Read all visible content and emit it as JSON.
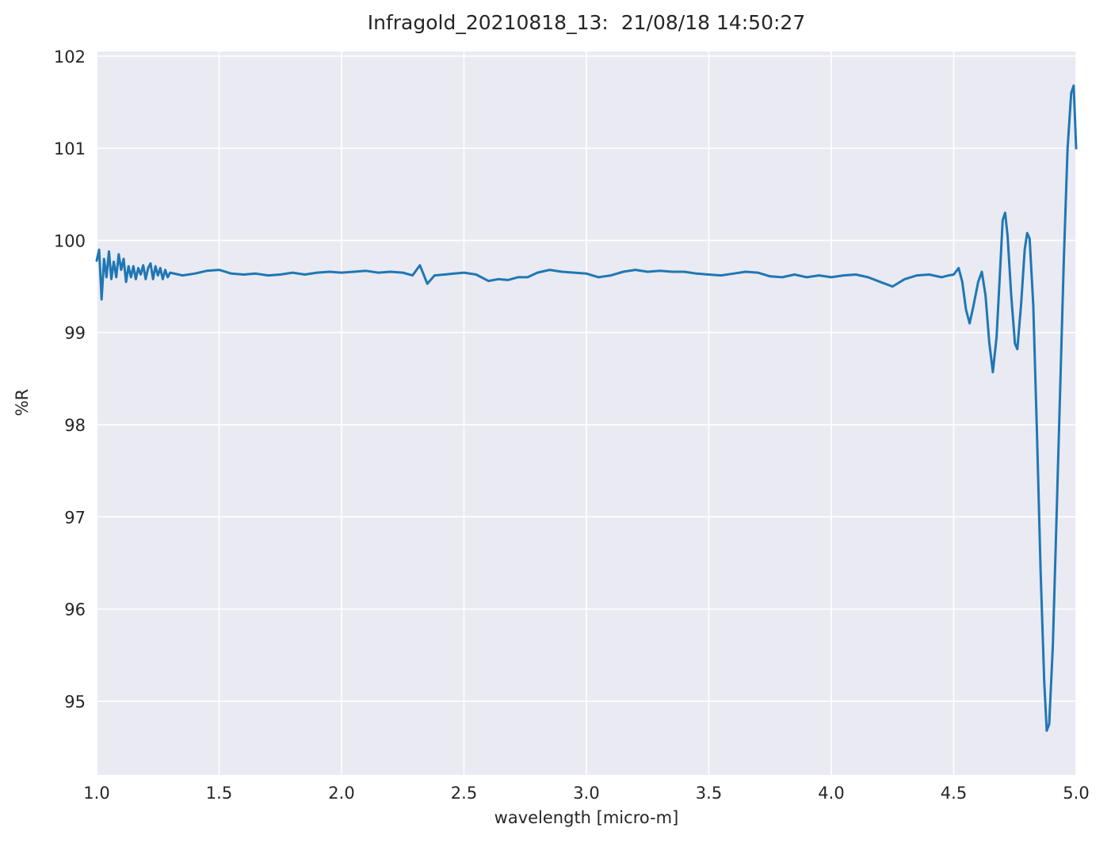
{
  "chart_data": {
    "type": "line",
    "title": "Infragold_20210818_13:  21/08/18 14:50:27",
    "xlabel": "wavelength [micro-m]",
    "ylabel": "%R",
    "xlim": [
      1.0,
      5.0
    ],
    "ylim": [
      94.2,
      102.05
    ],
    "xticks": [
      1.0,
      1.5,
      2.0,
      2.5,
      3.0,
      3.5,
      4.0,
      4.5,
      5.0
    ],
    "xtick_labels": [
      "1.0",
      "1.5",
      "2.0",
      "2.5",
      "3.0",
      "3.5",
      "4.0",
      "4.5",
      "5.0"
    ],
    "yticks": [
      95,
      96,
      97,
      98,
      99,
      100,
      101,
      102
    ],
    "ytick_labels": [
      "95",
      "96",
      "97",
      "98",
      "99",
      "100",
      "101",
      "102"
    ],
    "grid": true,
    "legend": "none",
    "line_color": "#1f77b4",
    "plot_bg": "#eaeaf2",
    "grid_color": "#ffffff",
    "series": [
      {
        "name": "Infragold_20210818_13",
        "points": [
          [
            1.0,
            99.78
          ],
          [
            1.01,
            99.9
          ],
          [
            1.02,
            99.36
          ],
          [
            1.03,
            99.8
          ],
          [
            1.04,
            99.6
          ],
          [
            1.05,
            99.88
          ],
          [
            1.06,
            99.58
          ],
          [
            1.07,
            99.77
          ],
          [
            1.08,
            99.6
          ],
          [
            1.09,
            99.85
          ],
          [
            1.1,
            99.68
          ],
          [
            1.11,
            99.8
          ],
          [
            1.12,
            99.55
          ],
          [
            1.13,
            99.72
          ],
          [
            1.14,
            99.6
          ],
          [
            1.15,
            99.72
          ],
          [
            1.16,
            99.58
          ],
          [
            1.17,
            99.7
          ],
          [
            1.18,
            99.63
          ],
          [
            1.19,
            99.73
          ],
          [
            1.2,
            99.58
          ],
          [
            1.21,
            99.7
          ],
          [
            1.22,
            99.75
          ],
          [
            1.23,
            99.58
          ],
          [
            1.24,
            99.72
          ],
          [
            1.25,
            99.62
          ],
          [
            1.26,
            99.7
          ],
          [
            1.27,
            99.58
          ],
          [
            1.28,
            99.68
          ],
          [
            1.29,
            99.6
          ],
          [
            1.3,
            99.65
          ],
          [
            1.35,
            99.62
          ],
          [
            1.4,
            99.64
          ],
          [
            1.45,
            99.67
          ],
          [
            1.5,
            99.68
          ],
          [
            1.55,
            99.64
          ],
          [
            1.6,
            99.63
          ],
          [
            1.65,
            99.64
          ],
          [
            1.7,
            99.62
          ],
          [
            1.75,
            99.63
          ],
          [
            1.8,
            99.65
          ],
          [
            1.85,
            99.63
          ],
          [
            1.9,
            99.65
          ],
          [
            1.95,
            99.66
          ],
          [
            2.0,
            99.65
          ],
          [
            2.05,
            99.66
          ],
          [
            2.1,
            99.67
          ],
          [
            2.15,
            99.65
          ],
          [
            2.2,
            99.66
          ],
          [
            2.25,
            99.65
          ],
          [
            2.29,
            99.62
          ],
          [
            2.32,
            99.73
          ],
          [
            2.35,
            99.53
          ],
          [
            2.38,
            99.62
          ],
          [
            2.42,
            99.63
          ],
          [
            2.46,
            99.64
          ],
          [
            2.5,
            99.65
          ],
          [
            2.55,
            99.63
          ],
          [
            2.6,
            99.56
          ],
          [
            2.64,
            99.58
          ],
          [
            2.68,
            99.57
          ],
          [
            2.72,
            99.6
          ],
          [
            2.76,
            99.6
          ],
          [
            2.8,
            99.65
          ],
          [
            2.85,
            99.68
          ],
          [
            2.9,
            99.66
          ],
          [
            2.95,
            99.65
          ],
          [
            3.0,
            99.64
          ],
          [
            3.05,
            99.6
          ],
          [
            3.1,
            99.62
          ],
          [
            3.15,
            99.66
          ],
          [
            3.2,
            99.68
          ],
          [
            3.25,
            99.66
          ],
          [
            3.3,
            99.67
          ],
          [
            3.35,
            99.66
          ],
          [
            3.4,
            99.66
          ],
          [
            3.45,
            99.64
          ],
          [
            3.5,
            99.63
          ],
          [
            3.55,
            99.62
          ],
          [
            3.6,
            99.64
          ],
          [
            3.65,
            99.66
          ],
          [
            3.7,
            99.65
          ],
          [
            3.75,
            99.61
          ],
          [
            3.8,
            99.6
          ],
          [
            3.85,
            99.63
          ],
          [
            3.9,
            99.6
          ],
          [
            3.95,
            99.62
          ],
          [
            4.0,
            99.6
          ],
          [
            4.05,
            99.62
          ],
          [
            4.1,
            99.63
          ],
          [
            4.15,
            99.6
          ],
          [
            4.2,
            99.55
          ],
          [
            4.25,
            99.5
          ],
          [
            4.3,
            99.58
          ],
          [
            4.35,
            99.62
          ],
          [
            4.4,
            99.63
          ],
          [
            4.45,
            99.6
          ],
          [
            4.48,
            99.62
          ],
          [
            4.5,
            99.63
          ],
          [
            4.52,
            99.7
          ],
          [
            4.535,
            99.55
          ],
          [
            4.55,
            99.25
          ],
          [
            4.565,
            99.1
          ],
          [
            4.58,
            99.28
          ],
          [
            4.6,
            99.55
          ],
          [
            4.615,
            99.66
          ],
          [
            4.63,
            99.4
          ],
          [
            4.645,
            98.9
          ],
          [
            4.66,
            98.57
          ],
          [
            4.675,
            98.95
          ],
          [
            4.69,
            99.7
          ],
          [
            4.7,
            100.22
          ],
          [
            4.71,
            100.3
          ],
          [
            4.72,
            100.05
          ],
          [
            4.735,
            99.4
          ],
          [
            4.75,
            98.88
          ],
          [
            4.76,
            98.82
          ],
          [
            4.775,
            99.3
          ],
          [
            4.79,
            99.9
          ],
          [
            4.8,
            100.08
          ],
          [
            4.81,
            100.02
          ],
          [
            4.825,
            99.3
          ],
          [
            4.84,
            97.9
          ],
          [
            4.855,
            96.4
          ],
          [
            4.87,
            95.2
          ],
          [
            4.88,
            94.68
          ],
          [
            4.89,
            94.75
          ],
          [
            4.905,
            95.6
          ],
          [
            4.92,
            97.0
          ],
          [
            4.935,
            98.4
          ],
          [
            4.95,
            99.8
          ],
          [
            4.965,
            101.0
          ],
          [
            4.98,
            101.6
          ],
          [
            4.99,
            101.68
          ],
          [
            5.0,
            101.0
          ]
        ]
      }
    ]
  }
}
